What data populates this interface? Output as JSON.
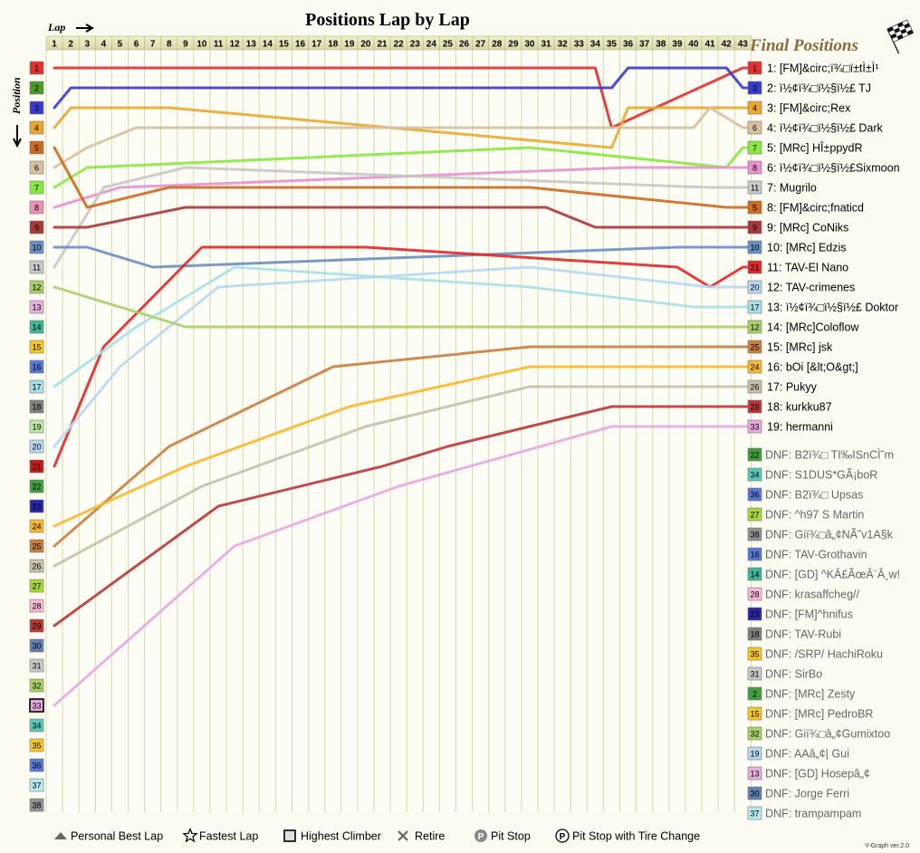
{
  "title": "Positions Lap by Lap",
  "lap_label": "Lap",
  "position_label": "Position",
  "final_positions_title": "Final Positions",
  "version": "Y-Graph ver.2.0",
  "legend": [
    {
      "icon": "personal-best-lap-icon",
      "label": "Personal Best Lap"
    },
    {
      "icon": "fastest-lap-icon",
      "label": "Fastest Lap"
    },
    {
      "icon": "highest-climber-icon",
      "label": "Highest Climber"
    },
    {
      "icon": "retire-icon",
      "label": "Retire"
    },
    {
      "icon": "pit-stop-icon",
      "label": "Pit Stop"
    },
    {
      "icon": "pit-stop-tire-change-icon",
      "label": "Pit Stop with Tire Change"
    }
  ],
  "chart_data": {
    "type": "line",
    "title": "Positions Lap by Lap",
    "xlabel": "Lap",
    "ylabel": "Position",
    "laps": [
      1,
      2,
      3,
      4,
      5,
      6,
      7,
      8,
      9,
      10,
      11,
      12,
      13,
      14,
      15,
      16,
      17,
      18,
      19,
      20,
      21,
      22,
      23,
      24,
      25,
      26,
      27,
      28,
      29,
      30,
      31,
      32,
      33,
      34,
      35,
      36,
      37,
      38,
      39,
      40,
      41,
      42,
      43
    ],
    "positions": [
      1,
      2,
      3,
      4,
      5,
      6,
      7,
      8,
      9,
      10,
      11,
      12,
      13,
      14,
      15,
      16,
      17,
      18,
      19,
      20,
      21,
      22,
      23,
      24,
      25,
      26,
      27,
      28,
      29,
      30,
      31,
      32,
      33,
      34,
      35,
      36,
      37,
      38
    ],
    "start_colors": [
      "#e03030",
      "#4a9a2a",
      "#3a3acc",
      "#e8a830",
      "#cc6a20",
      "#d8c0a0",
      "#88e840",
      "#e890b8",
      "#a83838",
      "#6890c0",
      "#c8c8c8",
      "#a8d068",
      "#e8b0e0",
      "#40b898",
      "#f8c820",
      "#5878d8",
      "#a8e0e8",
      "#808080",
      "#b8e8a8",
      "#b8d8f0",
      "#c81818",
      "#40a040",
      "#2828a8",
      "#f8b830",
      "#c88040",
      "#c8c0a8",
      "#a8d838",
      "#f8b8d8",
      "#b83838",
      "#6080b0",
      "#c8c8c8",
      "#a8d068",
      "#e8a8e0",
      "#58c8b8",
      "#f8c820",
      "#5878d8",
      "#b8e8f0",
      "#909090"
    ],
    "final_results": [
      {
        "color": "#e03030",
        "num": "1",
        "label": "1: [FM]&circ;ï¾□ï±tÌ±Ì¹"
      },
      {
        "color": "#3a3acc",
        "num": "3",
        "label": "2: ï½¢ï¾□ï½§ï½£ TJ"
      },
      {
        "color": "#e8a830",
        "num": "4",
        "label": "3: [FM]&circ;Rex"
      },
      {
        "color": "#d8c0a0",
        "num": "6",
        "label": "4: ï½¢ï¾□ï½§ï½£ Dark"
      },
      {
        "color": "#88e840",
        "num": "7",
        "label": "5: [MRc] HÎ±ppydR"
      },
      {
        "color": "#e890d0",
        "num": "8",
        "label": "6: ï½¢ï¾□ï½§ï½£Sixmoon"
      },
      {
        "color": "#c8c8c8",
        "num": "11",
        "label": "7: Mugrilo"
      },
      {
        "color": "#cc6a20",
        "num": "5",
        "label": "8: [FM]&circ;fnaticd"
      },
      {
        "color": "#a83838",
        "num": "9",
        "label": "9: [MRc] CoNiks"
      },
      {
        "color": "#6890c0",
        "num": "10",
        "label": "10: [MRc] Edzis"
      },
      {
        "color": "#e02828",
        "num": "21",
        "label": "11: TAV-El Nano"
      },
      {
        "color": "#b8d8f0",
        "num": "20",
        "label": "12: TAV-crimenes"
      },
      {
        "color": "#a8e0e8",
        "num": "17",
        "label": "13: ï½¢ï¾□ï½§ï½£ Doktor"
      },
      {
        "color": "#a8d068",
        "num": "12",
        "label": "14: [MRc]Coloflow"
      },
      {
        "color": "#c88040",
        "num": "25",
        "label": "15: [MRc] jsk"
      },
      {
        "color": "#f8b830",
        "num": "24",
        "label": "16: bOi [&lt;O&gt;]"
      },
      {
        "color": "#c8c0a8",
        "num": "26",
        "label": "17: Pukyy"
      },
      {
        "color": "#b83838",
        "num": "29",
        "label": "18: kurkku87"
      },
      {
        "color": "#e8a8e0",
        "num": "33",
        "label": "19: hermanni"
      }
    ],
    "dnf_results": [
      {
        "color": "#40a040",
        "num": "22",
        "label": "DNF: B2ï¾□ TI‰ISnCÌ˜m"
      },
      {
        "color": "#58c8b8",
        "num": "34",
        "label": "DNF: S1DUS*GÃ¡boR"
      },
      {
        "color": "#5878d8",
        "num": "36",
        "label": "DNF: B2ï¾□ Upsas"
      },
      {
        "color": "#a8d838",
        "num": "27",
        "label": "DNF: ^h97 S Martin"
      },
      {
        "color": "#909090",
        "num": "38",
        "label": "DNF: Giï¾□â„¢NÃ˜v1A§k"
      },
      {
        "color": "#5878d8",
        "num": "16",
        "label": "DNF: TAV-Grothavin"
      },
      {
        "color": "#40b898",
        "num": "14",
        "label": "DNF: [GD] ^KÂ£ÃœÂ¨Â¸w!"
      },
      {
        "color": "#f8b8d8",
        "num": "28",
        "label": "DNF: krasaffcheg//"
      },
      {
        "color": "#2828a8",
        "num": "23",
        "label": "DNF: [FM]^hnifus"
      },
      {
        "color": "#808080",
        "num": "18",
        "label": "DNF: TAV-Rubi"
      },
      {
        "color": "#f8c820",
        "num": "35",
        "label": "DNF: /SRP/ HachiRoku"
      },
      {
        "color": "#c8c8c8",
        "num": "31",
        "label": "DNF: SirBo"
      },
      {
        "color": "#40a040",
        "num": "2",
        "label": "DNF: [MRc] Zesty"
      },
      {
        "color": "#f8c820",
        "num": "15",
        "label": "DNF: [MRc] PedroBR"
      },
      {
        "color": "#a8d068",
        "num": "32",
        "label": "DNF: Giï¾□â„¢Gumixtoo"
      },
      {
        "color": "#b8d8f0",
        "num": "19",
        "label": "DNF: AAâ„¢| Gui"
      },
      {
        "color": "#e8b0e0",
        "num": "13",
        "label": "DNF: [GD] Hosepâ„¢"
      },
      {
        "color": "#6080b0",
        "num": "30",
        "label": "DNF: Jorge Ferri"
      },
      {
        "color": "#b8e8f0",
        "num": "37",
        "label": "DNF: trampampam"
      }
    ],
    "series": [
      {
        "color": "#e03030",
        "laps": [
          1,
          34,
          35,
          43
        ],
        "positions": [
          1,
          1,
          4,
          1
        ]
      },
      {
        "color": "#3a3acc",
        "laps": [
          1,
          2,
          35,
          36,
          42,
          43
        ],
        "positions": [
          3,
          2,
          2,
          1,
          1,
          2
        ]
      },
      {
        "color": "#e8a830",
        "laps": [
          1,
          2,
          4,
          8,
          35,
          36,
          43
        ],
        "positions": [
          4,
          3,
          3,
          3,
          5,
          3,
          3
        ]
      },
      {
        "color": "#d8c0a0",
        "laps": [
          1,
          3,
          6,
          40,
          41,
          43
        ],
        "positions": [
          6,
          5,
          4,
          4,
          3,
          4
        ]
      },
      {
        "color": "#88e840",
        "laps": [
          1,
          3,
          30,
          42,
          43
        ],
        "positions": [
          7,
          6,
          5,
          6,
          5
        ]
      },
      {
        "color": "#e890d0",
        "laps": [
          1,
          5,
          36,
          40,
          43
        ],
        "positions": [
          8,
          7,
          6,
          6,
          6
        ]
      },
      {
        "color": "#c8c8c8",
        "laps": [
          1,
          4,
          9,
          41,
          43
        ],
        "positions": [
          11,
          7,
          6,
          7,
          7
        ]
      },
      {
        "color": "#cc6a20",
        "laps": [
          1,
          3,
          8,
          30,
          42,
          43
        ],
        "positions": [
          5,
          8,
          7,
          7,
          8,
          8
        ]
      },
      {
        "color": "#a83838",
        "laps": [
          1,
          3,
          9,
          31,
          34,
          43
        ],
        "positions": [
          9,
          9,
          8,
          8,
          9,
          9
        ]
      },
      {
        "color": "#6890c0",
        "laps": [
          1,
          3,
          7,
          39,
          43
        ],
        "positions": [
          10,
          10,
          11,
          10,
          10
        ]
      },
      {
        "color": "#e02828",
        "laps": [
          1,
          4,
          10,
          20,
          39,
          41,
          43
        ],
        "positions": [
          21,
          15,
          10,
          10,
          11,
          12,
          11
        ]
      },
      {
        "color": "#b8d8f0",
        "laps": [
          1,
          5,
          11,
          30,
          41,
          43
        ],
        "positions": [
          20,
          16,
          12,
          11,
          12,
          12
        ]
      },
      {
        "color": "#a8e0e8",
        "laps": [
          1,
          6,
          12,
          30,
          40,
          43
        ],
        "positions": [
          17,
          14,
          11,
          12,
          13,
          13
        ]
      },
      {
        "color": "#a8d068",
        "laps": [
          1,
          5,
          9,
          17,
          34,
          43
        ],
        "positions": [
          12,
          13,
          14,
          14,
          14,
          14
        ]
      },
      {
        "color": "#c88040",
        "laps": [
          1,
          8,
          18,
          30,
          43
        ],
        "positions": [
          25,
          20,
          16,
          15,
          15
        ]
      },
      {
        "color": "#f8b830",
        "laps": [
          1,
          9,
          19,
          30,
          43
        ],
        "positions": [
          24,
          21,
          18,
          16,
          16
        ]
      },
      {
        "color": "#c8c0a8",
        "laps": [
          1,
          10,
          20,
          30,
          43
        ],
        "positions": [
          26,
          22,
          19,
          17,
          17
        ]
      },
      {
        "color": "#b83838",
        "laps": [
          1,
          11,
          21,
          25,
          35,
          43
        ],
        "positions": [
          29,
          23,
          21,
          20,
          18,
          18
        ]
      },
      {
        "color": "#e8a8e0",
        "laps": [
          1,
          12,
          22,
          35,
          43
        ],
        "positions": [
          33,
          25,
          22,
          19,
          19
        ]
      }
    ]
  }
}
